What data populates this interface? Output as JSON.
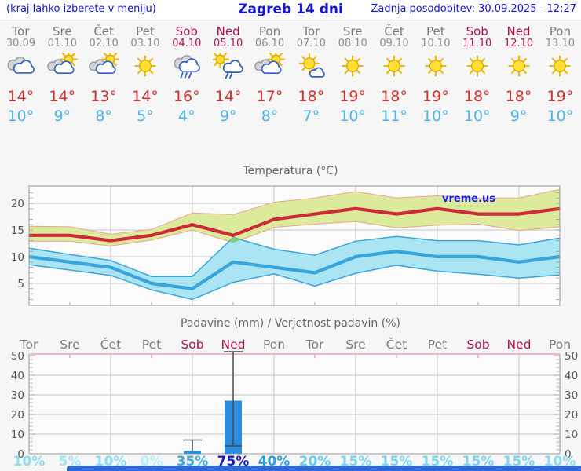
{
  "header": {
    "left_note": "(kraj lahko izberete v meniju)",
    "title": "Zagreb 14 dni",
    "updated": "Zadnja posodobitev: 30.09.2025 - 12:27"
  },
  "colors": {
    "accent_blue": "#1414d2",
    "weekend": "#b0104e",
    "weekday": "#7b7b7b",
    "weekday_date": "#8d8d8d",
    "temp_max": "#d4312e",
    "temp_min": "#4db3ea",
    "bar_blue": "#2b8ddf",
    "banner_blue": "#2f6bd8"
  },
  "days": [
    {
      "name": "Tor",
      "date": "30.09",
      "weekend": false,
      "icon": "cloudy-icon",
      "tmax": "14°",
      "tmin": "10°",
      "prob": "10%",
      "prob_color": "#8fdcf2"
    },
    {
      "name": "Sre",
      "date": "01.10",
      "weekend": false,
      "icon": "sun-cloud-icon",
      "tmax": "14°",
      "tmin": "9°",
      "prob": "5%",
      "prob_color": "#a6e5f4"
    },
    {
      "name": "Čet",
      "date": "02.10",
      "weekend": false,
      "icon": "sun-cloud-icon",
      "tmax": "13°",
      "tmin": "8°",
      "prob": "10%",
      "prob_color": "#8fdcf2"
    },
    {
      "name": "Pet",
      "date": "03.10",
      "weekend": false,
      "icon": "sunny-icon",
      "tmax": "14°",
      "tmin": "5°",
      "prob": "0%",
      "prob_color": "#b9eef7"
    },
    {
      "name": "Sob",
      "date": "04.10",
      "weekend": true,
      "icon": "rain-icon",
      "tmax": "16°",
      "tmin": "4°",
      "prob": "35%",
      "prob_color": "#3fa9de"
    },
    {
      "name": "Ned",
      "date": "05.10",
      "weekend": true,
      "icon": "sun-rain-icon",
      "tmax": "14°",
      "tmin": "9°",
      "prob": "75%",
      "prob_color": "#1d1dbe"
    },
    {
      "name": "Pon",
      "date": "06.10",
      "weekend": false,
      "icon": "sun-cloud-icon",
      "tmax": "17°",
      "tmin": "8°",
      "prob": "40%",
      "prob_color": "#2f9bdc"
    },
    {
      "name": "Tor",
      "date": "07.10",
      "weekend": false,
      "icon": "sunny-cloud-icon",
      "tmax": "18°",
      "tmin": "7°",
      "prob": "20%",
      "prob_color": "#66cbec"
    },
    {
      "name": "Sre",
      "date": "08.10",
      "weekend": false,
      "icon": "sunny-icon",
      "tmax": "19°",
      "tmin": "10°",
      "prob": "15%",
      "prob_color": "#7cd5f0"
    },
    {
      "name": "Čet",
      "date": "09.10",
      "weekend": false,
      "icon": "sunny-icon",
      "tmax": "18°",
      "tmin": "11°",
      "prob": "15%",
      "prob_color": "#7cd5f0"
    },
    {
      "name": "Pet",
      "date": "10.10",
      "weekend": false,
      "icon": "sunny-icon",
      "tmax": "19°",
      "tmin": "10°",
      "prob": "15%",
      "prob_color": "#7cd5f0"
    },
    {
      "name": "Sob",
      "date": "11.10",
      "weekend": true,
      "icon": "sunny-icon",
      "tmax": "18°",
      "tmin": "10°",
      "prob": "15%",
      "prob_color": "#7cd5f0"
    },
    {
      "name": "Ned",
      "date": "12.10",
      "weekend": true,
      "icon": "sunny-icon",
      "tmax": "18°",
      "tmin": "9°",
      "prob": "15%",
      "prob_color": "#7cd5f0"
    },
    {
      "name": "Pon",
      "date": "13.10",
      "weekend": false,
      "icon": "sunny-icon",
      "tmax": "19°",
      "tmin": "10°",
      "prob": "10%",
      "prob_color": "#8fdcf2"
    }
  ],
  "chart_data": [
    {
      "type": "area",
      "title": "Temperatura (°C)",
      "watermark": "vreme.us",
      "x_categories": [
        "Tor 30.09",
        "Sre 01.10",
        "Čet 02.10",
        "Pet 03.10",
        "Sob 04.10",
        "Ned 05.10",
        "Pon 06.10",
        "Tor 07.10",
        "Sre 08.10",
        "Čet 09.10",
        "Pet 10.10",
        "Sob 11.10",
        "Ned 12.10",
        "Pon 13.10"
      ],
      "yticks": [
        5,
        10,
        15,
        20
      ],
      "ylim": [
        1,
        23
      ],
      "grid": true,
      "series": [
        {
          "name": "max-temp",
          "color": "#ce2b38",
          "values": [
            14,
            14,
            13,
            14,
            16,
            14,
            17,
            18,
            19,
            18,
            19,
            18,
            18,
            19
          ]
        },
        {
          "name": "max-temp-range-high",
          "color": "#dcea9b",
          "values": [
            15.7,
            15.6,
            14.2,
            15.1,
            18.2,
            17.9,
            20.2,
            21,
            22.2,
            21,
            21.4,
            21,
            21,
            22.6
          ]
        },
        {
          "name": "max-temp-range-low",
          "color": "#dcea9b",
          "values": [
            12.9,
            12.9,
            12,
            13.1,
            15,
            12.6,
            15.5,
            16.1,
            16.6,
            15.4,
            15.9,
            16.1,
            14.9,
            15.6
          ]
        },
        {
          "name": "min-temp",
          "color": "#38a5dc",
          "values": [
            10,
            9,
            8,
            5,
            4,
            9,
            8,
            7,
            10,
            11,
            10,
            10,
            9,
            10
          ]
        },
        {
          "name": "min-temp-range-high",
          "color": "#abe4f2",
          "values": [
            11.6,
            10.4,
            9.3,
            6.3,
            6.3,
            13.6,
            11.4,
            10.3,
            12.9,
            13.8,
            13,
            13,
            12.2,
            13.5
          ]
        },
        {
          "name": "min-temp-range-low",
          "color": "#abe4f2",
          "values": [
            8.5,
            7.5,
            6.5,
            3.8,
            2,
            5.2,
            6.8,
            4.5,
            6.9,
            8.4,
            7.3,
            6.7,
            6,
            6.6
          ]
        }
      ]
    },
    {
      "type": "bar",
      "title": "Padavine (mm) / Verjetnost padavin (%)",
      "categories": [
        "Tor",
        "Sre",
        "Čet",
        "Pet",
        "Sob",
        "Ned",
        "Pon",
        "Tor",
        "Sre",
        "Čet",
        "Pet",
        "Sob",
        "Ned",
        "Pon"
      ],
      "values_mm": [
        0,
        0,
        0,
        0,
        1.5,
        27,
        0,
        0,
        0,
        0,
        0,
        0,
        0,
        0
      ],
      "whiskers": [
        {
          "day_index": 4,
          "low": 1.5,
          "high": 7
        },
        {
          "day_index": 5,
          "low": 4,
          "high": 52
        }
      ],
      "probabilities_pct": [
        10,
        5,
        10,
        0,
        35,
        75,
        40,
        20,
        15,
        15,
        15,
        15,
        15,
        10
      ],
      "yticks": [
        0,
        10,
        20,
        30,
        40,
        50
      ],
      "ylim": [
        0,
        52
      ],
      "grid": true,
      "bar_color": "#2b8ddf"
    }
  ]
}
